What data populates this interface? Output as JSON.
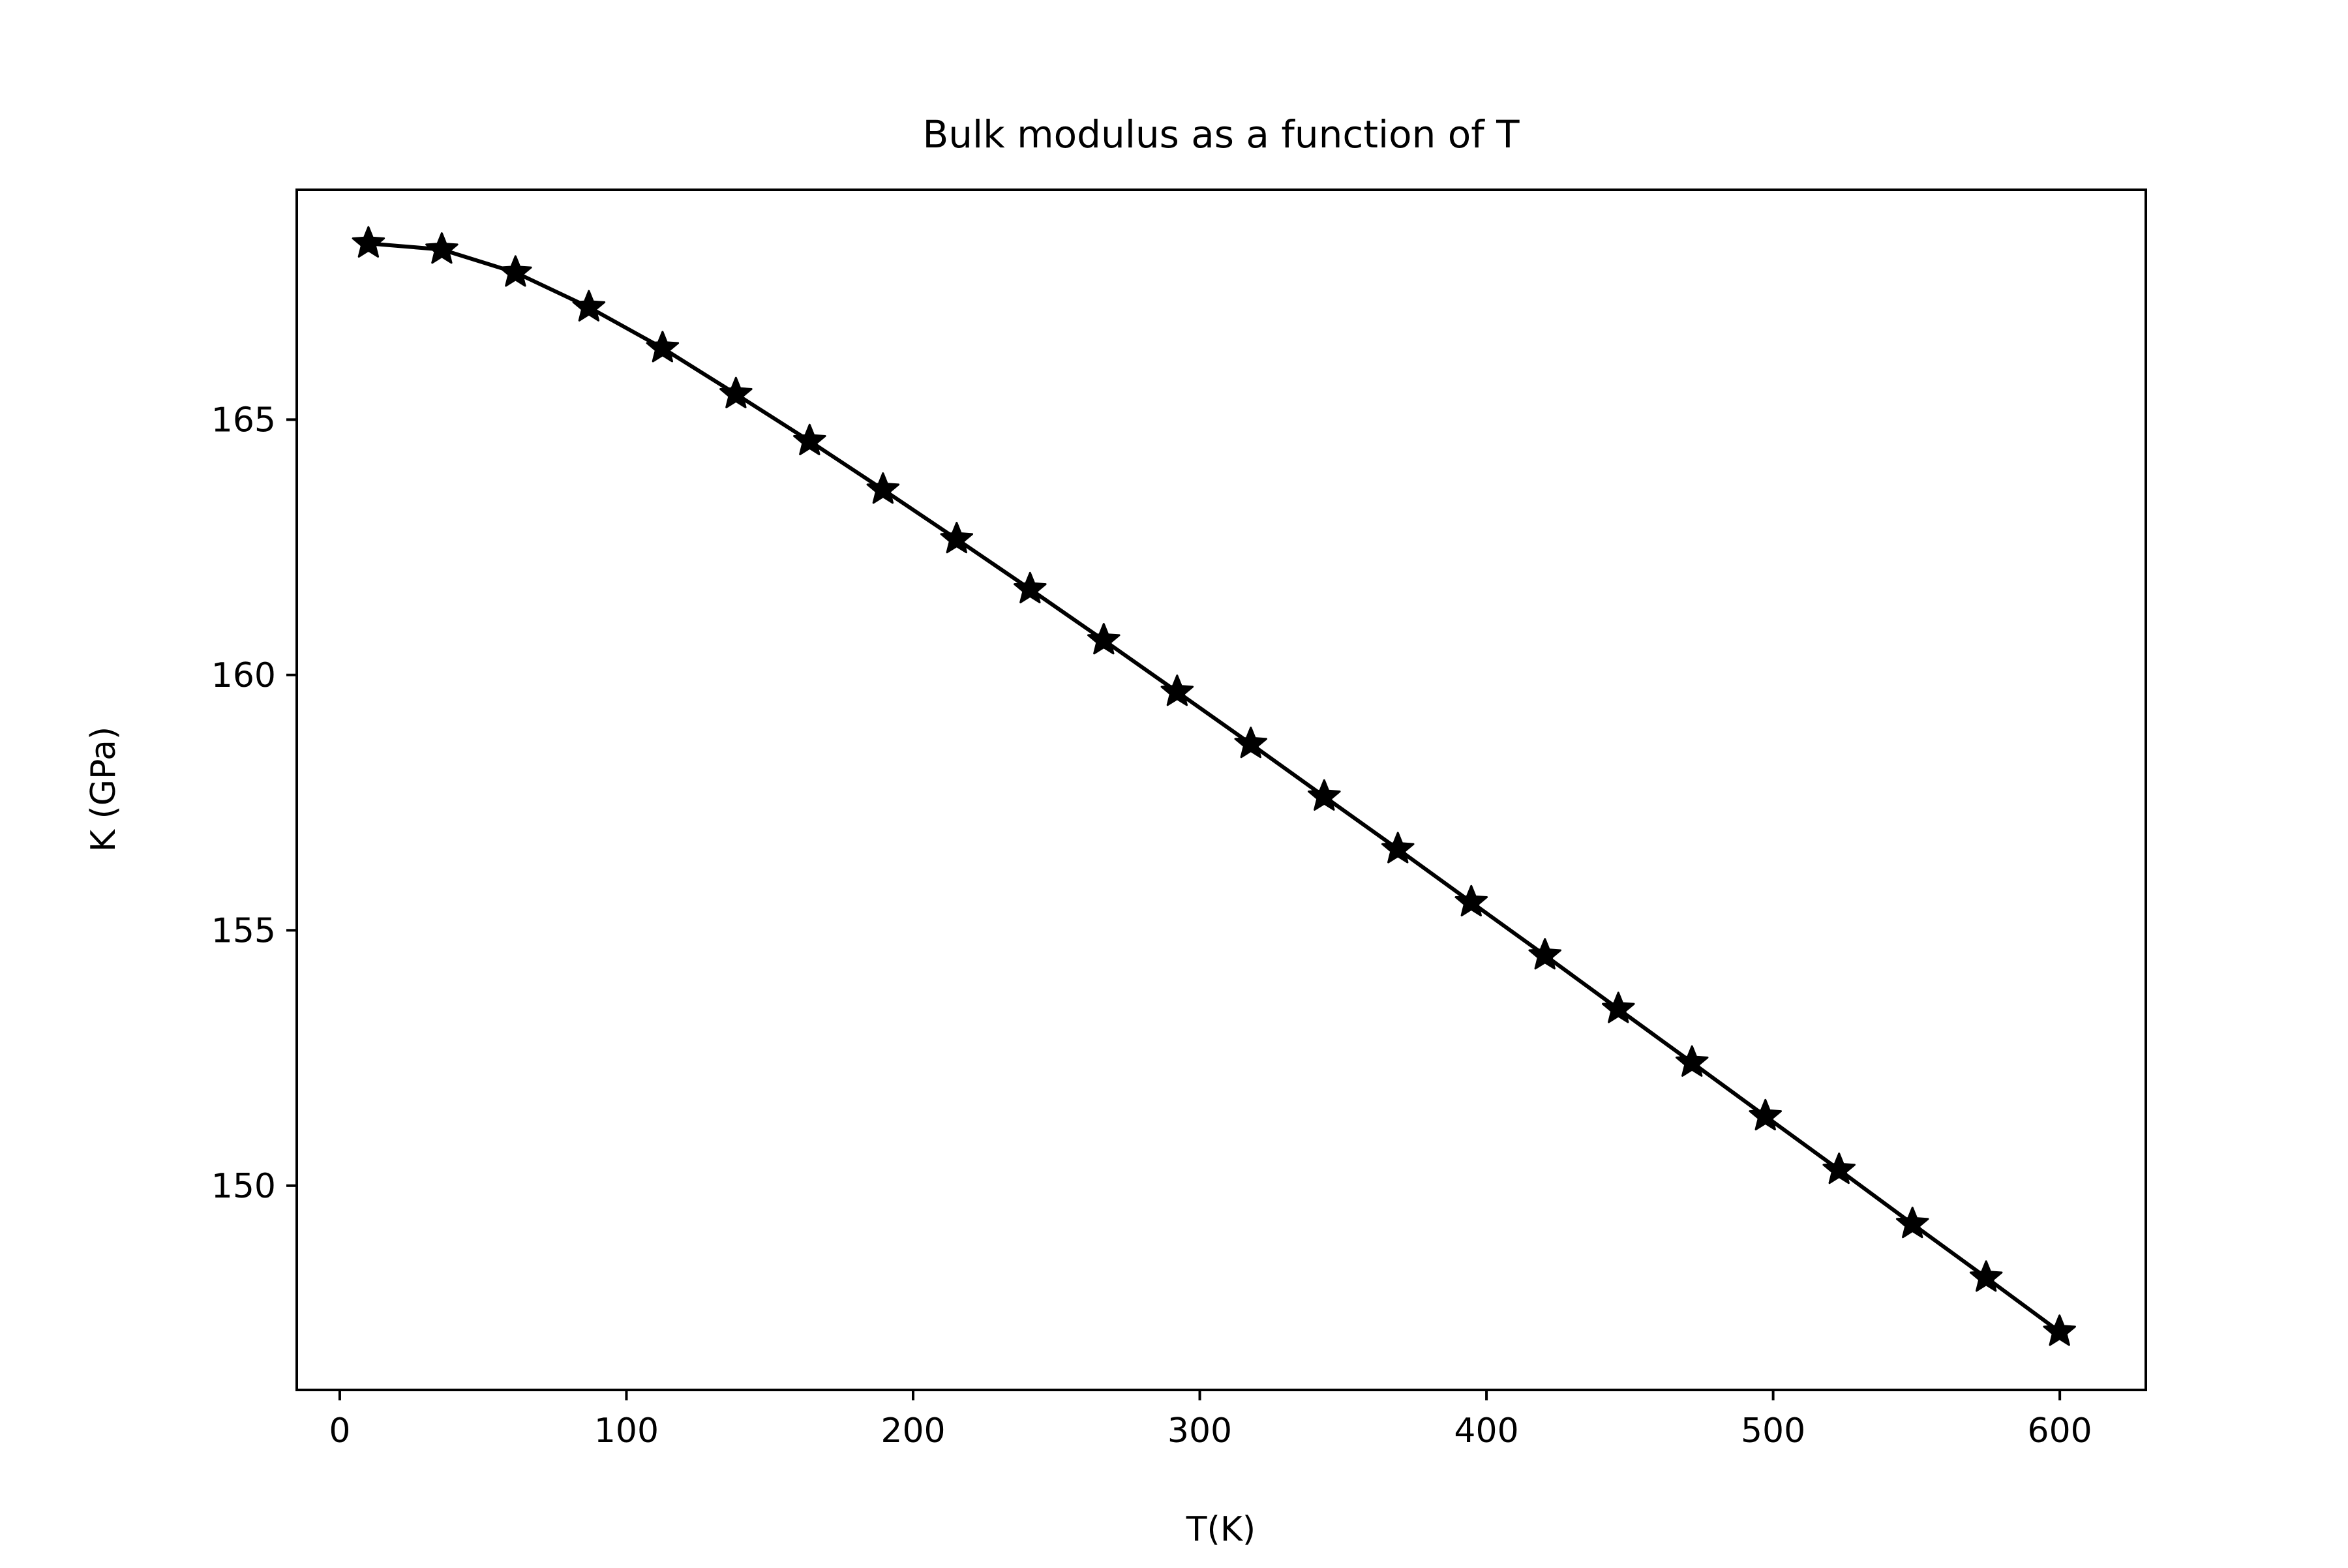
{
  "chart_data": {
    "type": "line",
    "title": "Bulk modulus as a function of T",
    "xlabel": "T(K)",
    "ylabel": "K (GPa)",
    "xlim": [
      -15,
      630
    ],
    "ylim": [
      146.0,
      169.5
    ],
    "xticks": [
      0,
      100,
      200,
      300,
      400,
      500,
      600
    ],
    "xtick_labels": [
      "0",
      "100",
      "200",
      "300",
      "400",
      "500",
      "600"
    ],
    "yticks": [
      150,
      155,
      160,
      165
    ],
    "ytick_labels": [
      "150",
      "155",
      "160",
      "165"
    ],
    "grid": false,
    "legend": "none",
    "colors": {
      "line": "#000000",
      "marker": "#000000",
      "axes": "#000000",
      "background": "#ffffff"
    },
    "marker": "star",
    "series": [
      {
        "x": [
          10,
          35.6,
          61.3,
          86.9,
          112.6,
          138.2,
          163.9,
          189.5,
          215.2,
          240.8,
          266.5,
          292.1,
          317.8,
          343.4,
          369.1,
          394.7,
          420.4,
          446.0,
          471.7,
          497.3,
          523.0,
          548.6,
          574.3,
          599.9
        ],
        "values": [
          168.45,
          168.33,
          167.88,
          167.2,
          166.4,
          165.5,
          164.58,
          163.63,
          162.66,
          161.68,
          160.68,
          159.67,
          158.65,
          157.62,
          156.59,
          155.55,
          154.51,
          153.46,
          152.41,
          151.36,
          150.31,
          149.25,
          148.2,
          147.14
        ]
      }
    ]
  }
}
